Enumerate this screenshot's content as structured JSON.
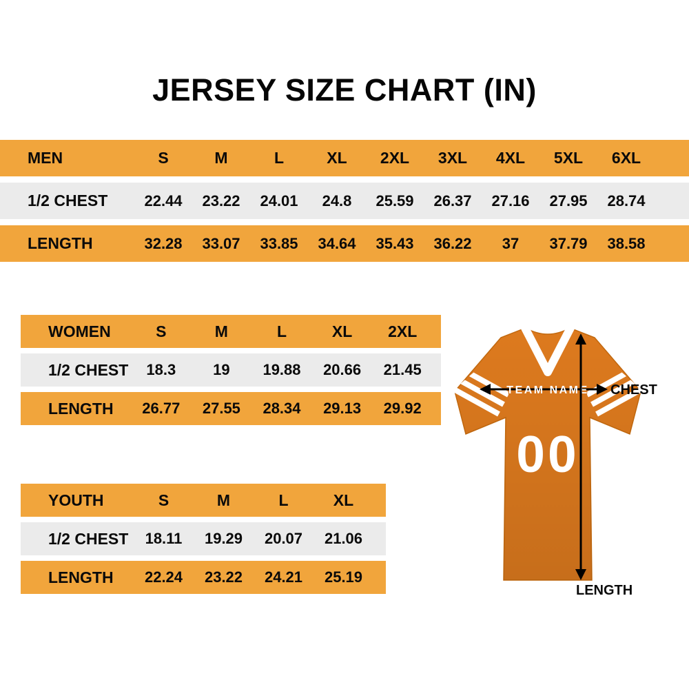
{
  "title": "JERSEY SIZE CHART (IN)",
  "colors": {
    "table_orange": "#F1A53C",
    "row_gray": "#EBEBEB",
    "jersey_orange": "#DD7A1E",
    "text_black": "#0A0A0A"
  },
  "chart_data": [
    {
      "type": "table",
      "name": "men",
      "header": [
        "MEN",
        "S",
        "M",
        "L",
        "XL",
        "2XL",
        "3XL",
        "4XL",
        "5XL",
        "6XL"
      ],
      "rows": [
        {
          "label": "1/2 CHEST",
          "values": [
            "22.44",
            "23.22",
            "24.01",
            "24.8",
            "25.59",
            "26.37",
            "27.16",
            "27.95",
            "28.74"
          ]
        },
        {
          "label": "LENGTH",
          "values": [
            "32.28",
            "33.07",
            "33.85",
            "34.64",
            "35.43",
            "36.22",
            "37",
            "37.79",
            "38.58"
          ]
        }
      ]
    },
    {
      "type": "table",
      "name": "women",
      "header": [
        "WOMEN",
        "S",
        "M",
        "L",
        "XL",
        "2XL"
      ],
      "rows": [
        {
          "label": "1/2 CHEST",
          "values": [
            "18.3",
            "19",
            "19.88",
            "20.66",
            "21.45"
          ]
        },
        {
          "label": "LENGTH",
          "values": [
            "26.77",
            "27.55",
            "28.34",
            "29.13",
            "29.92"
          ]
        }
      ]
    },
    {
      "type": "table",
      "name": "youth",
      "header": [
        "YOUTH",
        "S",
        "M",
        "L",
        "XL"
      ],
      "rows": [
        {
          "label": "1/2 CHEST",
          "values": [
            "18.11",
            "19.29",
            "20.07",
            "21.06"
          ]
        },
        {
          "label": "LENGTH",
          "values": [
            "22.24",
            "23.22",
            "24.21",
            "25.19"
          ]
        }
      ]
    }
  ],
  "jersey": {
    "team_name": "TEAM NAME",
    "number": "00",
    "chest_label": "CHEST",
    "length_label": "LENGTH"
  }
}
